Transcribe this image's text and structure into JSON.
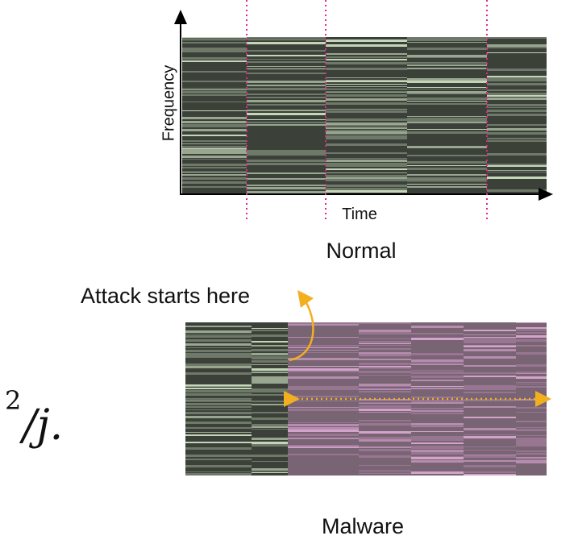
{
  "top_panel": {
    "y_axis_label": "Frequency",
    "x_axis_label": "Time",
    "caption": "Normal"
  },
  "bottom_panel": {
    "annotation": "Attack starts here",
    "caption": "Malware"
  },
  "math_fragment": {
    "superscript": "2",
    "text": "/j."
  }
}
